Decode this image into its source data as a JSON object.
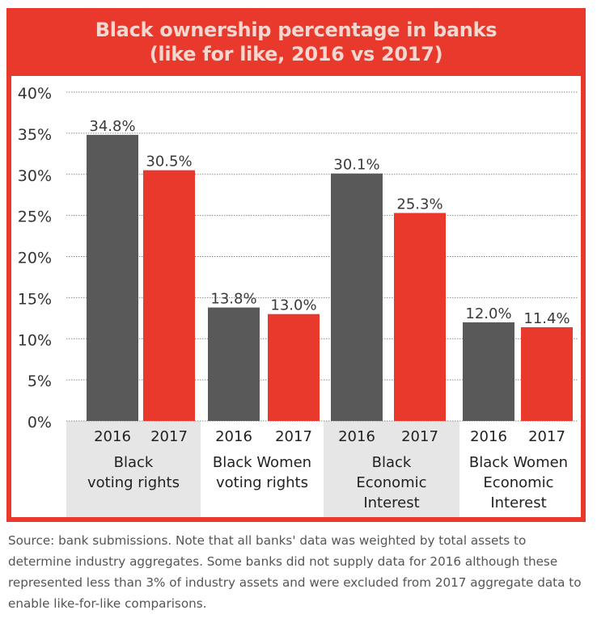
{
  "title": {
    "line1": "Black ownership percentage in banks",
    "line2": "(like for like, 2016 vs 2017)"
  },
  "source_note": "Source: bank submissions. Note that all banks' data was weighted by total assets to determine industry aggregates. Some banks did not supply data for 2016 although these represented less than 3% of industry assets and were excluded from 2017 aggregate data to enable like-for-like comparisons.",
  "colors": {
    "frame": "#e8392c",
    "title_text": "#f6d7cf",
    "bar_2016": "#595959",
    "bar_2017": "#e8392c",
    "group_band": "#e6e6e6"
  },
  "chart_data": {
    "type": "bar",
    "title": "Black ownership percentage in banks (like for like, 2016 vs 2017)",
    "ylim": [
      0,
      40
    ],
    "yticks": [
      {
        "value": 0,
        "label": "0%"
      },
      {
        "value": 5,
        "label": "5%"
      },
      {
        "value": 10,
        "label": "10%"
      },
      {
        "value": 15,
        "label": "15%"
      },
      {
        "value": 20,
        "label": "20%"
      },
      {
        "value": 25,
        "label": "25%"
      },
      {
        "value": 30,
        "label": "30%"
      },
      {
        "value": 35,
        "label": "35%"
      },
      {
        "value": 40,
        "label": "40%"
      }
    ],
    "grid": true,
    "groups": [
      {
        "label_lines": [
          "Black",
          "voting rights"
        ],
        "shaded": true
      },
      {
        "label_lines": [
          "Black Women",
          "voting rights"
        ],
        "shaded": false
      },
      {
        "label_lines": [
          "Black",
          "Economic",
          "Interest"
        ],
        "shaded": true
      },
      {
        "label_lines": [
          "Black Women",
          "Economic",
          "Interest"
        ],
        "shaded": false
      }
    ],
    "series": [
      {
        "name": "2016",
        "values": [
          34.8,
          13.8,
          30.1,
          12.0
        ],
        "labels": [
          "34.8%",
          "13.8%",
          "30.1%",
          "12.0%"
        ]
      },
      {
        "name": "2017",
        "values": [
          30.5,
          13.0,
          25.3,
          11.4
        ],
        "labels": [
          "30.5%",
          "13.0%",
          "25.3%",
          "11.4%"
        ]
      }
    ]
  }
}
